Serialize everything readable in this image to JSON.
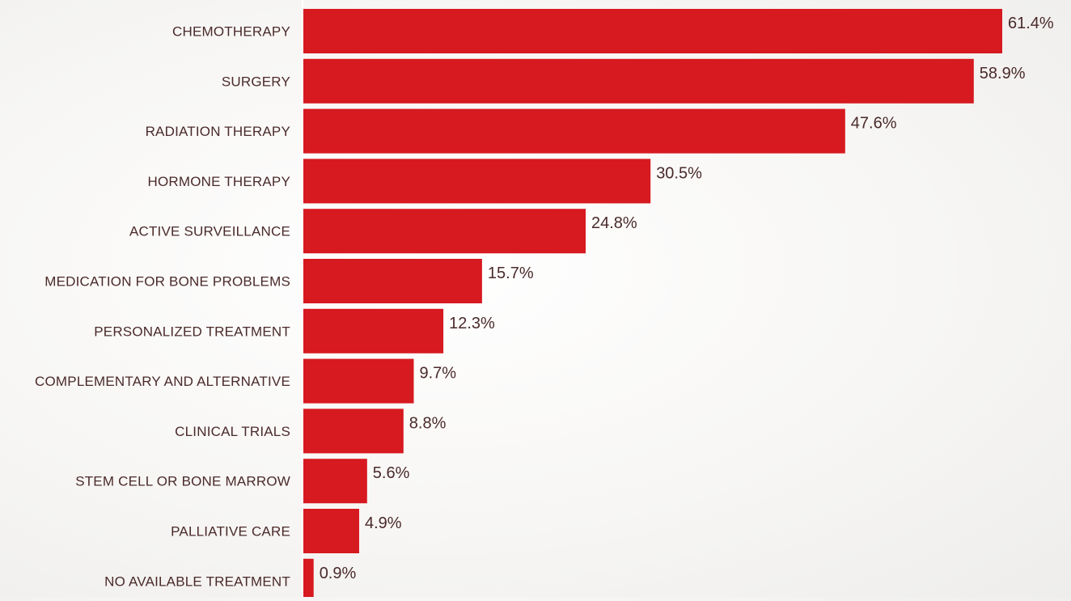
{
  "chart_data": {
    "type": "bar",
    "orientation": "horizontal",
    "title": "",
    "xlabel": "",
    "ylabel": "",
    "categories": [
      "CHEMOTHERAPY",
      "SURGERY",
      "RADIATION THERAPY",
      "HORMONE THERAPY",
      "ACTIVE SURVEILLANCE",
      "MEDICATION FOR BONE PROBLEMS",
      "PERSONALIZED TREATMENT",
      "COMPLEMENTARY AND ALTERNATIVE",
      "CLINICAL TRIALS",
      "STEM CELL OR BONE MARROW",
      "PALLIATIVE CARE",
      "NO AVAILABLE TREATMENT"
    ],
    "values": [
      61.4,
      58.9,
      47.6,
      30.5,
      24.8,
      15.7,
      12.3,
      9.7,
      8.8,
      5.6,
      4.9,
      0.9
    ],
    "value_labels": [
      "61.4%",
      "58.9%",
      "47.6%",
      "30.5%",
      "24.8%",
      "15.7%",
      "12.3%",
      "9.7%",
      "8.8%",
      "5.6%",
      "4.9%",
      "0.9%"
    ],
    "unit": "%",
    "xlim": [
      0,
      61.4
    ],
    "grid": false,
    "legend": "none",
    "bar_color": "#d71920",
    "text_color": "#4a2a2a"
  }
}
